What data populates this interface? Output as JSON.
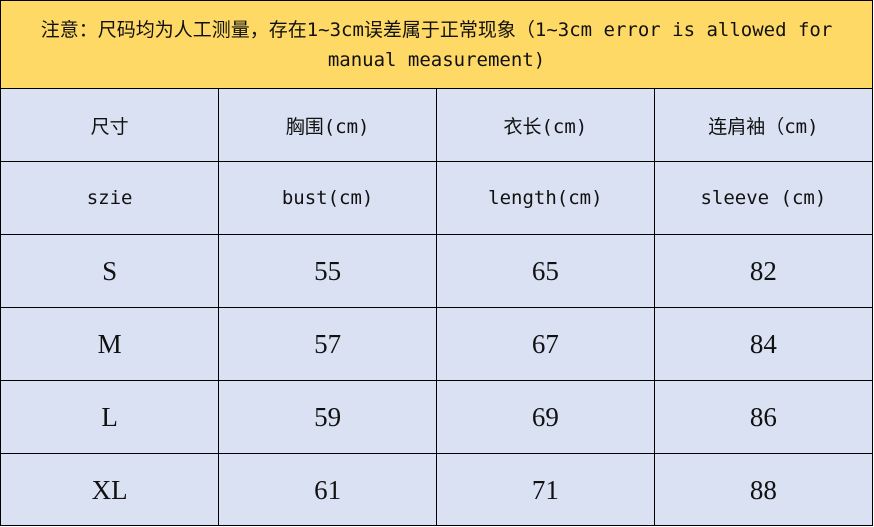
{
  "note": "注意：尺码均为人工测量，存在1~3cm误差属于正常现象（1~3cm error is allowed for manual measurement)",
  "header_cn": [
    "尺寸",
    "胸围(cm)",
    "衣长(cm)",
    "连肩袖（cm)"
  ],
  "header_en": [
    "szie",
    "bust(cm)",
    "length(cm)",
    "sleeve (cm)"
  ],
  "rows": [
    [
      "S",
      "55",
      "65",
      "82"
    ],
    [
      "M",
      "57",
      "67",
      "84"
    ],
    [
      "L",
      "59",
      "69",
      "86"
    ],
    [
      "XL",
      "61",
      "71",
      "88"
    ]
  ],
  "colors": {
    "note_bg": "#FFD966",
    "table_bg": "#D9E1F2"
  }
}
